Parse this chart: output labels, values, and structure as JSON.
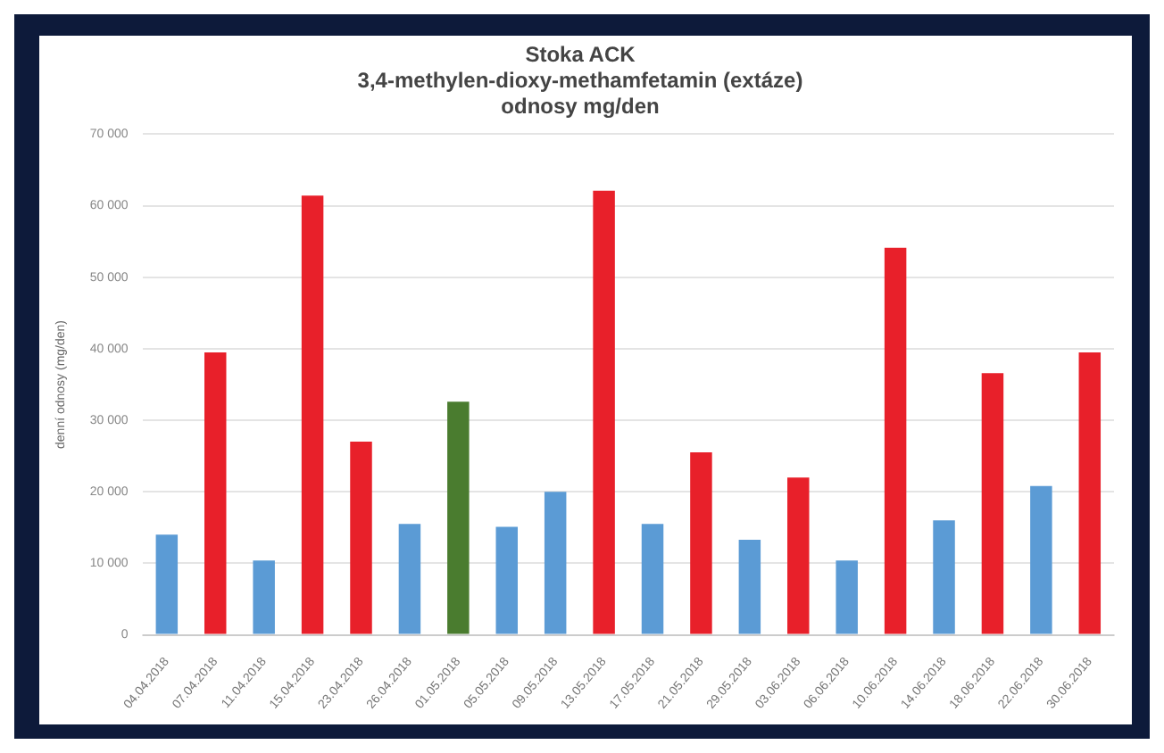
{
  "chart_data": {
    "type": "bar",
    "title": "Stoka ACK\n3,4-methylen-dioxy-methamfetamin (extáze)\nodnosy mg/den",
    "ylabel": "denní odnosy (mg/den)",
    "categories": [
      "04.04.2018",
      "07.04.2018",
      "11.04.2018",
      "15.04.2018",
      "23.04.2018",
      "26.04.2018",
      "01.05.2018",
      "05.05.2018",
      "09.05.2018",
      "13.05.2018",
      "17.05.2018",
      "21.05.2018",
      "29.05.2018",
      "03.06.2018",
      "06.06.2018",
      "10.06.2018",
      "14.06.2018",
      "18.06.2018",
      "22.06.2018",
      "30.06.2018"
    ],
    "values": [
      14000,
      39500,
      10400,
      61400,
      27000,
      15500,
      32600,
      15100,
      20000,
      62100,
      15500,
      25500,
      13300,
      22000,
      10400,
      54100,
      16000,
      36600,
      20800,
      39500
    ],
    "colors": [
      "#5b9bd5",
      "#e8202a",
      "#5b9bd5",
      "#e8202a",
      "#e8202a",
      "#5b9bd5",
      "#4a7c2f",
      "#5b9bd5",
      "#5b9bd5",
      "#e8202a",
      "#5b9bd5",
      "#e8202a",
      "#5b9bd5",
      "#e8202a",
      "#5b9bd5",
      "#e8202a",
      "#5b9bd5",
      "#e8202a",
      "#5b9bd5",
      "#e8202a"
    ],
    "ylim": [
      0,
      70000
    ],
    "yticks": [
      0,
      {
        "value": 10000,
        "label": "10 000"
      },
      {
        "value": 20000,
        "label": "20 000"
      },
      {
        "value": 30000,
        "label": "30 000"
      },
      {
        "value": 40000,
        "label": "40 000"
      },
      {
        "value": 50000,
        "label": "50 000"
      },
      {
        "value": 60000,
        "label": "60 000"
      },
      {
        "value": 70000,
        "label": "70 000"
      }
    ],
    "grid": "y",
    "legend": false
  }
}
